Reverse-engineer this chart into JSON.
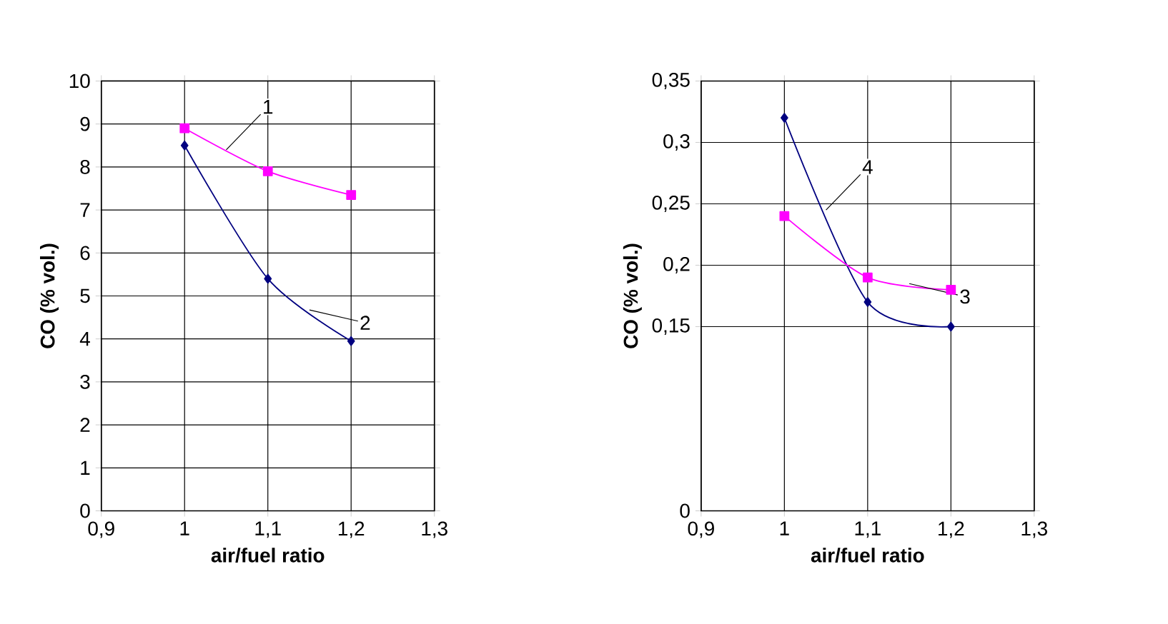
{
  "chart_data": [
    {
      "type": "line",
      "xlabel": "air/fuel ratio",
      "ylabel": "CO (% vol.)",
      "x": [
        1,
        1.1,
        1.2
      ],
      "xlim": [
        0.9,
        1.3
      ],
      "xticks": [
        {
          "value": 0.9,
          "label": "0,9"
        },
        1,
        {
          "value": 1.1,
          "label": "1,1"
        },
        {
          "value": 1.2,
          "label": "1,2"
        },
        {
          "value": 1.3,
          "label": "1,3"
        }
      ],
      "ylim": [
        0,
        10
      ],
      "yticks": [
        0,
        1,
        2,
        3,
        4,
        5,
        6,
        7,
        8,
        9,
        10
      ],
      "grid": true,
      "series": [
        {
          "name": "1",
          "color": "#ff00ff",
          "marker": "square",
          "values": [
            8.9,
            7.9,
            7.35
          ]
        },
        {
          "name": "2",
          "color": "#000080",
          "marker": "diamond",
          "values": [
            8.5,
            5.4,
            3.95
          ]
        }
      ]
    },
    {
      "type": "line",
      "xlabel": "air/fuel ratio",
      "ylabel": "CO (% vol.)",
      "x": [
        1,
        1.1,
        1.2
      ],
      "xlim": [
        0.9,
        1.3
      ],
      "xticks": [
        {
          "value": 0.9,
          "label": "0,9"
        },
        1,
        {
          "value": 1.1,
          "label": "1,1"
        },
        {
          "value": 1.2,
          "label": "1,2"
        },
        {
          "value": 1.3,
          "label": "1,3"
        }
      ],
      "ylim": [
        0,
        0.35
      ],
      "yticks": [
        0,
        {
          "value": 0.15,
          "label": "0,15"
        },
        {
          "value": 0.2,
          "label": "0,2"
        },
        {
          "value": 0.25,
          "label": "0,25"
        },
        {
          "value": 0.3,
          "label": "0,3"
        },
        {
          "value": 0.35,
          "label": "0,35"
        }
      ],
      "grid": true,
      "series": [
        {
          "name": "4",
          "color": "#000080",
          "marker": "diamond",
          "values": [
            0.32,
            0.17,
            0.15
          ]
        },
        {
          "name": "3",
          "color": "#ff00ff",
          "marker": "square",
          "values": [
            0.24,
            0.19,
            0.18
          ]
        }
      ]
    }
  ]
}
